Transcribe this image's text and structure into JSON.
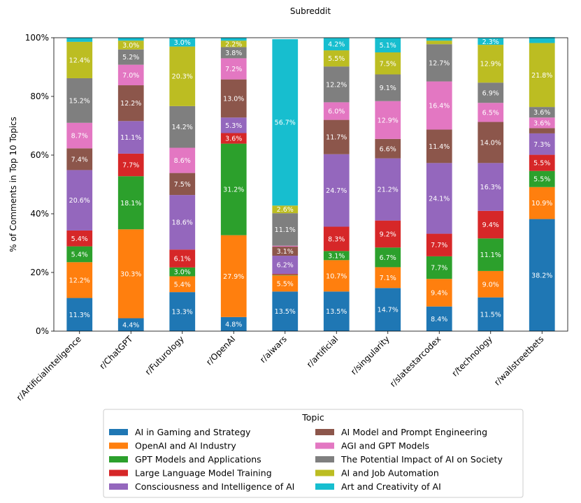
{
  "chart_data": {
    "type": "bar",
    "stacked": true,
    "title": "Subreddit",
    "xlabel": "",
    "ylabel": "% of Comments in Top 10 Topics",
    "ylim": [
      0,
      100
    ],
    "yticks": [
      "0%",
      "20%",
      "40%",
      "60%",
      "80%",
      "100%"
    ],
    "grid": false,
    "legend_title": "Topic",
    "legend_position": "bottom",
    "categories": [
      "r/ArtificialInteligence",
      "r/ChatGPT",
      "r/Futurology",
      "r/OpenAI",
      "r/aiwars",
      "r/artificial",
      "r/singularity",
      "r/slatestarcodex",
      "r/technology",
      "r/wallstreetbets"
    ],
    "series": [
      {
        "name": "AI in Gaming and Strategy",
        "color": "#1f77b4",
        "values": [
          11.3,
          4.4,
          13.3,
          4.8,
          13.5,
          13.5,
          14.7,
          8.4,
          11.5,
          38.2
        ]
      },
      {
        "name": "OpenAI and AI Industry",
        "color": "#ff7f0e",
        "values": [
          12.2,
          30.3,
          5.4,
          27.9,
          5.5,
          10.7,
          7.1,
          9.4,
          9.0,
          10.9
        ]
      },
      {
        "name": "GPT Models and Applications",
        "color": "#2ca02c",
        "values": [
          5.4,
          18.1,
          3.0,
          31.2,
          0.2,
          3.1,
          6.7,
          7.7,
          11.1,
          5.5
        ]
      },
      {
        "name": "Large Language Model Training",
        "color": "#d62728",
        "values": [
          5.4,
          7.7,
          6.1,
          3.6,
          0.3,
          8.3,
          9.2,
          7.7,
          9.4,
          5.5
        ]
      },
      {
        "name": "Consciousness and Intelligence of AI",
        "color": "#9467bd",
        "values": [
          20.6,
          11.1,
          18.6,
          5.3,
          6.2,
          24.7,
          21.2,
          24.1,
          16.3,
          7.3
        ]
      },
      {
        "name": "AI Model and Prompt Engineering",
        "color": "#8c564b",
        "values": [
          7.4,
          12.2,
          7.5,
          13.0,
          3.1,
          11.7,
          6.6,
          11.4,
          14.0,
          1.8
        ]
      },
      {
        "name": "AGI and GPT Models",
        "color": "#e377c2",
        "values": [
          8.7,
          7.0,
          8.6,
          7.2,
          0.3,
          6.0,
          12.9,
          16.4,
          6.5,
          3.6
        ]
      },
      {
        "name": "The Potential Impact of AI on Society",
        "color": "#7f7f7f",
        "values": [
          15.2,
          5.2,
          14.2,
          3.8,
          11.1,
          12.2,
          9.1,
          12.7,
          6.9,
          3.6
        ]
      },
      {
        "name": "AI and Job Automation",
        "color": "#bcbd22",
        "values": [
          12.4,
          3.0,
          20.3,
          2.2,
          2.6,
          5.5,
          7.5,
          1.2,
          12.9,
          21.8
        ]
      },
      {
        "name": "Art and Creativity of AI",
        "color": "#17becf",
        "values": [
          1.4,
          1.0,
          3.0,
          1.0,
          56.7,
          4.2,
          5.1,
          1.0,
          2.3,
          2.0
        ]
      }
    ],
    "data_labels": [
      [
        "11.3%",
        "4.4%",
        "13.3%",
        "4.8%",
        "13.5%",
        "13.5%",
        "14.7%",
        "8.4%",
        "11.5%",
        "38.2%"
      ],
      [
        "12.2%",
        "30.3%",
        "5.4%",
        "27.9%",
        "5.5%",
        "10.7%",
        "7.1%",
        "9.4%",
        "9.0%",
        "10.9%"
      ],
      [
        "5.4%",
        "18.1%",
        "3.0%",
        "31.2%",
        "",
        "3.1%",
        "6.7%",
        "7.7%",
        "11.1%",
        "5.5%"
      ],
      [
        "5.4%",
        "7.7%",
        "6.1%",
        "3.6%",
        "",
        "8.3%",
        "9.2%",
        "7.7%",
        "9.4%",
        "5.5%"
      ],
      [
        "20.6%",
        "11.1%",
        "18.6%",
        "5.3%",
        "6.2%",
        "24.7%",
        "21.2%",
        "24.1%",
        "16.3%",
        "7.3%"
      ],
      [
        "7.4%",
        "12.2%",
        "7.5%",
        "13.0%",
        "3.1%",
        "11.7%",
        "6.6%",
        "11.4%",
        "14.0%",
        ""
      ],
      [
        "8.7%",
        "7.0%",
        "8.6%",
        "7.2%",
        "",
        "6.0%",
        "12.9%",
        "16.4%",
        "6.5%",
        "3.6%"
      ],
      [
        "15.2%",
        "5.2%",
        "14.2%",
        "3.8%",
        "11.1%",
        "12.2%",
        "9.1%",
        "12.7%",
        "6.9%",
        "3.6%"
      ],
      [
        "12.4%",
        "3.0%",
        "20.3%",
        "2.2%",
        "2.6%",
        "5.5%",
        "7.5%",
        "",
        "12.9%",
        "21.8%"
      ],
      [
        "",
        "",
        "3.0%",
        "",
        "56.7%",
        "4.2%",
        "5.1%",
        "",
        "2.3%",
        ""
      ]
    ]
  }
}
